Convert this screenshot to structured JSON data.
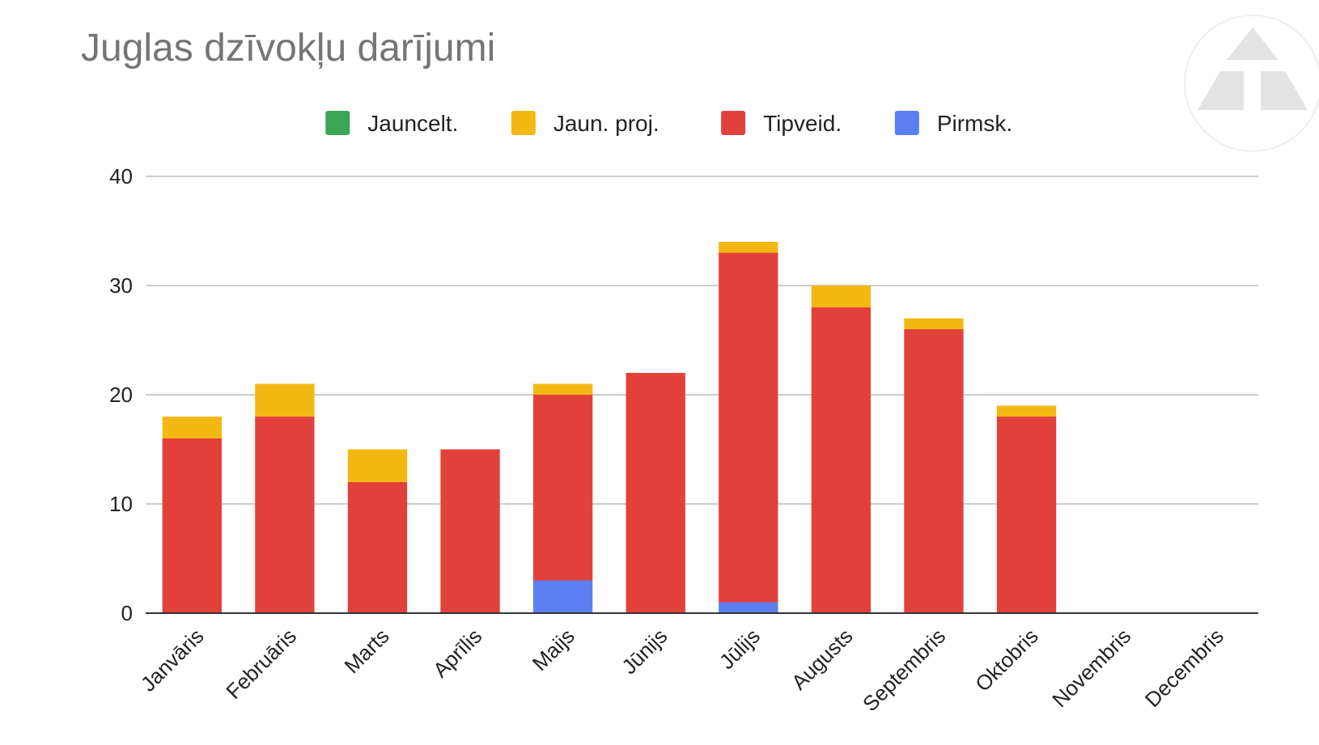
{
  "chart_data": {
    "type": "bar",
    "stacked": true,
    "title": "Juglas dzīvokļu darījumi",
    "xlabel": "",
    "ylabel": "",
    "categories": [
      "Janvāris",
      "Februāris",
      "Marts",
      "Aprīlis",
      "Maijs",
      "Jūnijs",
      "Jūlijs",
      "Augusts",
      "Septembris",
      "Oktobris",
      "Novembris",
      "Decembris"
    ],
    "series": [
      {
        "name": "Pirmsk.",
        "color": "#5b7ff0",
        "values": [
          0,
          0,
          0,
          0,
          3,
          0,
          1,
          0,
          0,
          0,
          0,
          0
        ]
      },
      {
        "name": "Tipveid.",
        "color": "#e2413b",
        "values": [
          16,
          18,
          12,
          15,
          17,
          22,
          32,
          28,
          26,
          18,
          0,
          0
        ]
      },
      {
        "name": "Jaun. proj.",
        "color": "#f4b813",
        "values": [
          2,
          3,
          3,
          0,
          1,
          0,
          1,
          2,
          1,
          1,
          0,
          0
        ]
      },
      {
        "name": "Jauncelt.",
        "color": "#3aa655",
        "values": [
          0,
          0,
          0,
          0,
          0,
          0,
          0,
          0,
          0,
          0,
          0,
          0
        ]
      }
    ],
    "legend_order": [
      "Jauncelt.",
      "Jaun. proj.",
      "Tipveid.",
      "Pirmsk."
    ],
    "yticks": [
      0,
      10,
      20,
      30,
      40
    ],
    "ylim": [
      0,
      40
    ],
    "grid": true,
    "legend_position": "top"
  },
  "logo": {
    "icon": "triangle-logo-icon",
    "color": "#e3e3e3"
  }
}
